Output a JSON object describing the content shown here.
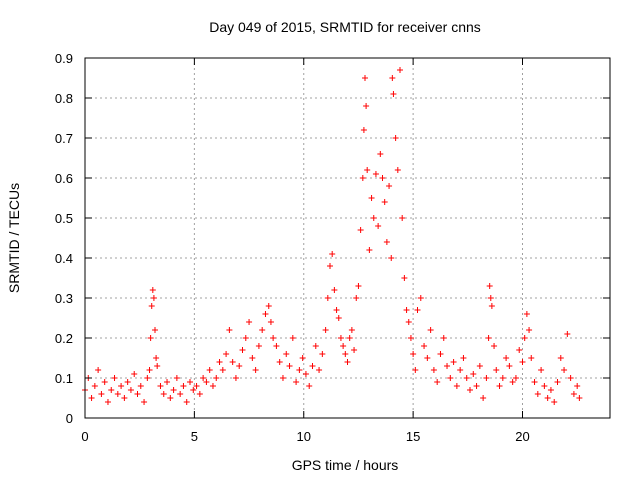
{
  "chart_data": {
    "type": "scatter",
    "title": "Day 049 of 2015, SRMTID for receiver cnns",
    "xlabel": "GPS time / hours",
    "ylabel": "SRMTID / TECUs",
    "xlim": [
      0,
      24
    ],
    "ylim": [
      0,
      0.9
    ],
    "xticks": [
      0,
      5,
      10,
      15,
      20
    ],
    "yticks": [
      0,
      0.1,
      0.2,
      0.3,
      0.4,
      0.5,
      0.6,
      0.7,
      0.8,
      0.9
    ],
    "grid": true,
    "marker": "+",
    "color": "#ff0000",
    "series": [
      {
        "name": "SRMTID",
        "x": [
          0.0,
          0.15,
          0.3,
          0.45,
          0.6,
          0.75,
          0.9,
          1.05,
          1.2,
          1.35,
          1.5,
          1.65,
          1.8,
          1.95,
          2.1,
          2.25,
          2.4,
          2.55,
          2.7,
          2.85,
          2.95,
          3.0,
          3.05,
          3.1,
          3.15,
          3.2,
          3.25,
          3.3,
          3.45,
          3.6,
          3.75,
          3.9,
          4.05,
          4.2,
          4.35,
          4.5,
          4.65,
          4.8,
          4.95,
          5.1,
          5.25,
          5.4,
          5.55,
          5.7,
          5.85,
          6.0,
          6.15,
          6.3,
          6.45,
          6.6,
          6.75,
          6.9,
          7.05,
          7.2,
          7.35,
          7.5,
          7.65,
          7.8,
          7.95,
          8.1,
          8.25,
          8.4,
          8.5,
          8.6,
          8.75,
          8.9,
          9.05,
          9.2,
          9.35,
          9.5,
          9.65,
          9.8,
          9.95,
          10.1,
          10.25,
          10.4,
          10.55,
          10.7,
          10.85,
          11.0,
          11.1,
          11.2,
          11.3,
          11.4,
          11.5,
          11.6,
          11.7,
          11.8,
          11.9,
          12.0,
          12.1,
          12.2,
          12.3,
          12.4,
          12.5,
          12.6,
          12.7,
          12.75,
          12.8,
          12.85,
          12.9,
          13.0,
          13.1,
          13.2,
          13.3,
          13.4,
          13.5,
          13.6,
          13.7,
          13.8,
          13.9,
          14.0,
          14.05,
          14.1,
          14.2,
          14.3,
          14.4,
          14.5,
          14.6,
          14.7,
          14.8,
          14.9,
          15.0,
          15.1,
          15.2,
          15.35,
          15.5,
          15.65,
          15.8,
          15.95,
          16.1,
          16.25,
          16.4,
          16.55,
          16.7,
          16.85,
          17.0,
          17.15,
          17.3,
          17.45,
          17.6,
          17.75,
          17.9,
          18.05,
          18.2,
          18.35,
          18.45,
          18.5,
          18.55,
          18.6,
          18.7,
          18.8,
          18.95,
          19.1,
          19.25,
          19.4,
          19.55,
          19.7,
          19.85,
          20.0,
          20.1,
          20.2,
          20.3,
          20.4,
          20.55,
          20.7,
          20.85,
          21.0,
          21.15,
          21.3,
          21.45,
          21.6,
          21.75,
          21.9,
          22.05,
          22.2,
          22.35,
          22.5,
          22.6
        ],
        "y": [
          0.07,
          0.1,
          0.05,
          0.08,
          0.12,
          0.06,
          0.09,
          0.04,
          0.07,
          0.1,
          0.06,
          0.08,
          0.05,
          0.09,
          0.07,
          0.11,
          0.06,
          0.08,
          0.04,
          0.1,
          0.12,
          0.2,
          0.28,
          0.32,
          0.3,
          0.22,
          0.15,
          0.13,
          0.08,
          0.06,
          0.09,
          0.05,
          0.07,
          0.1,
          0.06,
          0.08,
          0.04,
          0.09,
          0.07,
          0.08,
          0.06,
          0.1,
          0.09,
          0.12,
          0.08,
          0.1,
          0.14,
          0.12,
          0.16,
          0.22,
          0.14,
          0.1,
          0.13,
          0.17,
          0.2,
          0.24,
          0.15,
          0.12,
          0.18,
          0.22,
          0.26,
          0.28,
          0.24,
          0.2,
          0.18,
          0.14,
          0.1,
          0.16,
          0.13,
          0.2,
          0.09,
          0.12,
          0.15,
          0.11,
          0.08,
          0.13,
          0.18,
          0.12,
          0.16,
          0.22,
          0.3,
          0.38,
          0.41,
          0.32,
          0.27,
          0.25,
          0.2,
          0.18,
          0.16,
          0.14,
          0.2,
          0.22,
          0.17,
          0.3,
          0.33,
          0.47,
          0.6,
          0.72,
          0.85,
          0.78,
          0.62,
          0.42,
          0.55,
          0.5,
          0.61,
          0.48,
          0.66,
          0.6,
          0.54,
          0.44,
          0.58,
          0.4,
          0.85,
          0.81,
          0.7,
          0.62,
          0.87,
          0.5,
          0.35,
          0.27,
          0.24,
          0.2,
          0.16,
          0.12,
          0.27,
          0.3,
          0.18,
          0.15,
          0.22,
          0.12,
          0.09,
          0.16,
          0.2,
          0.13,
          0.1,
          0.14,
          0.08,
          0.12,
          0.15,
          0.1,
          0.07,
          0.11,
          0.08,
          0.13,
          0.05,
          0.1,
          0.2,
          0.33,
          0.3,
          0.28,
          0.18,
          0.12,
          0.08,
          0.1,
          0.15,
          0.13,
          0.09,
          0.1,
          0.17,
          0.14,
          0.2,
          0.26,
          0.22,
          0.15,
          0.09,
          0.06,
          0.12,
          0.08,
          0.05,
          0.07,
          0.04,
          0.09,
          0.15,
          0.12,
          0.21,
          0.1,
          0.06,
          0.08,
          0.05
        ]
      }
    ]
  }
}
